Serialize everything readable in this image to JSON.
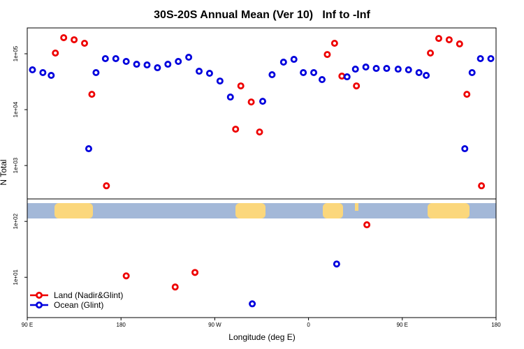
{
  "chart_data": {
    "type": "scatter",
    "title": "30S-20S Annual Mean (Ver 10)   Inf to -Inf",
    "x_label": "Longitude (deg E)",
    "y_label": "N Total",
    "xlim": [
      90,
      540
    ],
    "ylim": [
      1.9,
      290000
    ],
    "log_y": true,
    "legend": "lower left",
    "xticks": [
      {
        "value": 90,
        "label": "90 E"
      },
      180,
      {
        "value": 270,
        "label": "90 W"
      },
      {
        "value": 360,
        "label": "0"
      },
      {
        "value": 450,
        "label": "90 E"
      },
      {
        "value": 540,
        "label": "180"
      }
    ],
    "yticks": [
      {
        "value": 10,
        "label": "1e+01"
      },
      {
        "value": 100,
        "label": "1e+02"
      },
      {
        "value": 1000,
        "label": "1e+03"
      },
      {
        "value": 10000,
        "label": "1e+04"
      },
      {
        "value": 100000,
        "label": "1e+05"
      }
    ],
    "series": [
      {
        "name": "Land (Nadir&Glint)",
        "color": "#ee0000",
        "x": [
          117,
          125,
          135,
          145,
          152,
          166,
          185,
          232,
          251,
          290,
          295,
          305,
          313,
          378,
          385,
          392,
          406,
          416,
          477,
          485,
          495,
          505,
          512,
          526
        ],
        "values": [
          103000,
          194000,
          178000,
          154000,
          18800,
          434,
          10.6,
          6.7,
          12.2,
          4470,
          26600,
          13700,
          3980,
          97000,
          154000,
          39800,
          26600,
          87,
          103000,
          188000,
          178000,
          150000,
          18800,
          434
        ]
      },
      {
        "name": "Ocean (Glint)",
        "color": "#0000dd",
        "x": [
          95,
          105,
          113,
          149,
          156,
          165,
          175,
          185,
          195,
          205,
          215,
          225,
          235,
          245,
          255,
          265,
          275,
          285,
          306,
          316,
          325,
          336,
          346,
          355,
          365,
          373,
          387,
          397,
          405,
          415,
          425,
          435,
          446,
          456,
          466,
          473,
          510,
          517,
          525,
          535
        ],
        "values": [
          51600,
          46000,
          41000,
          2000,
          46000,
          81800,
          81800,
          72900,
          64900,
          63100,
          56200,
          64900,
          72900,
          86600,
          48700,
          44700,
          32500,
          16800,
          3.35,
          14100,
          42200,
          70800,
          79400,
          46000,
          46000,
          34500,
          17.3,
          38700,
          53100,
          57900,
          54600,
          54600,
          53100,
          51600,
          46000,
          41000,
          2000,
          46000,
          81800,
          81800
        ]
      }
    ]
  }
}
